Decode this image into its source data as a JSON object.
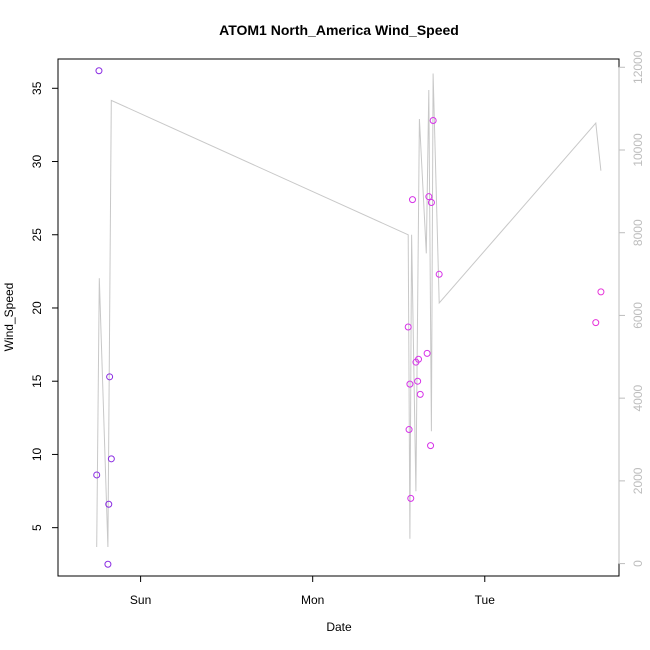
{
  "chart_data": {
    "type": "scatter",
    "title": "ATOM1 North_America Wind_Speed",
    "xlabel": "Date",
    "ylabel": "Wind_Speed",
    "x_ticks": [
      {
        "label": "Sun",
        "value": 1.0
      },
      {
        "label": "Mon",
        "value": 2.0
      },
      {
        "label": "Tue",
        "value": 3.0
      }
    ],
    "xlim": [
      0.52,
      3.78
    ],
    "ylim": [
      1.7,
      37.0
    ],
    "y_ticks": [
      5,
      10,
      15,
      20,
      25,
      30,
      35
    ],
    "y2lim": [
      -300,
      12200
    ],
    "y2_ticks": [
      0,
      2000,
      4000,
      6000,
      8000,
      10000,
      12000
    ],
    "grid": false,
    "legend": "none",
    "point_colors": [
      "#8a2be2",
      "#b12ee6",
      "#d633e8",
      "#e633d9"
    ],
    "line_color": "#c8c8c8",
    "series": [
      {
        "values": [
          {
            "x": 0.745,
            "y": 8.6
          },
          {
            "x": 0.758,
            "y": 36.2
          },
          {
            "x": 0.81,
            "y": 2.5
          },
          {
            "x": 0.815,
            "y": 6.6
          },
          {
            "x": 0.82,
            "y": 15.3
          },
          {
            "x": 0.83,
            "y": 9.7
          },
          {
            "x": 2.555,
            "y": 18.7
          },
          {
            "x": 2.56,
            "y": 11.7
          },
          {
            "x": 2.565,
            "y": 14.8
          },
          {
            "x": 2.57,
            "y": 7.0
          },
          {
            "x": 2.58,
            "y": 27.4
          },
          {
            "x": 2.6,
            "y": 16.3
          },
          {
            "x": 2.61,
            "y": 15.0
          },
          {
            "x": 2.615,
            "y": 16.5
          },
          {
            "x": 2.625,
            "y": 14.1
          },
          {
            "x": 2.665,
            "y": 16.9
          },
          {
            "x": 2.675,
            "y": 27.6
          },
          {
            "x": 2.685,
            "y": 10.6
          },
          {
            "x": 2.69,
            "y": 27.2
          },
          {
            "x": 2.7,
            "y": 32.8
          },
          {
            "x": 2.735,
            "y": 22.3
          },
          {
            "x": 3.645,
            "y": 19.0
          },
          {
            "x": 3.675,
            "y": 21.1
          }
        ]
      },
      {
        "values": [
          {
            "x": 0.745,
            "y": 400
          },
          {
            "x": 0.76,
            "y": 6900
          },
          {
            "x": 0.81,
            "y": 400
          },
          {
            "x": 0.83,
            "y": 11200
          },
          {
            "x": 2.555,
            "y": 7950
          },
          {
            "x": 2.565,
            "y": 600
          },
          {
            "x": 2.575,
            "y": 7950
          },
          {
            "x": 2.6,
            "y": 1750
          },
          {
            "x": 2.62,
            "y": 10750
          },
          {
            "x": 2.66,
            "y": 7500
          },
          {
            "x": 2.675,
            "y": 11450
          },
          {
            "x": 2.69,
            "y": 3200
          },
          {
            "x": 2.7,
            "y": 11850
          },
          {
            "x": 2.735,
            "y": 6300
          },
          {
            "x": 3.645,
            "y": 10650
          },
          {
            "x": 3.675,
            "y": 9500
          }
        ]
      }
    ]
  }
}
